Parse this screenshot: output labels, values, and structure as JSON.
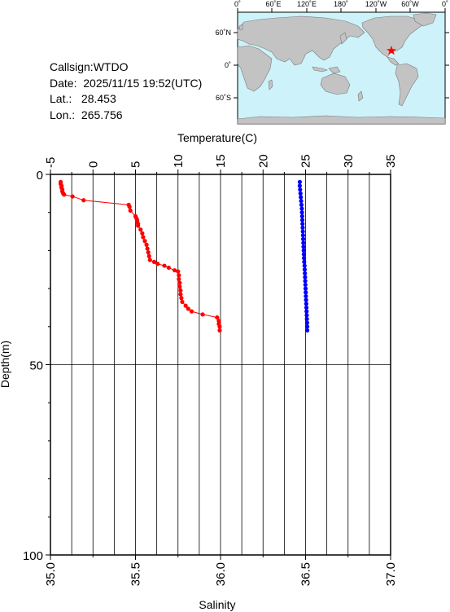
{
  "info": {
    "callsign": "Callsign:WTDO",
    "date_label": "Date:",
    "date_value": "2025/11/15 19:52(UTC)",
    "lat_label": "Lat.:",
    "lat_value": "28.453",
    "lon_label": "Lon.:",
    "lon_value": "265.756"
  },
  "map": {
    "top_labels": [
      "0˚",
      "60˚E",
      "120˚E",
      "180˚",
      "120˚W",
      "60˚W",
      "0˚"
    ],
    "left_labels": [
      "60˚N",
      "0˚",
      "60˚S"
    ],
    "ocean_color": "#cdf2fa",
    "land_color": "#c3c3c3",
    "marker_color": "#ff0000",
    "marker_icon": "star-icon"
  },
  "chart_data": {
    "type": "scatter",
    "title": "",
    "top_axis": {
      "label": "Temperature(C)",
      "ticks": [
        "-5",
        "0",
        "5",
        "10",
        "15",
        "20",
        "25",
        "30",
        "35"
      ],
      "range": [
        -5,
        35
      ]
    },
    "bottom_axis": {
      "label": "Salinity",
      "ticks": [
        "35.0",
        "35.5",
        "36.0",
        "36.5",
        "37.0"
      ],
      "range": [
        35.0,
        37.0
      ]
    },
    "left_axis": {
      "label": "Depth(m)",
      "ticks": [
        "0",
        "50",
        "100"
      ],
      "range": [
        0,
        100
      ],
      "inverted": true
    },
    "grid": true,
    "series": [
      {
        "name": "Temperature",
        "axis": "top",
        "color": "#ff0000",
        "connected": true,
        "points": [
          [
            -3.8,
            2.0
          ],
          [
            -3.8,
            2.5
          ],
          [
            -3.7,
            3.0
          ],
          [
            -3.7,
            3.5
          ],
          [
            -3.6,
            4.0
          ],
          [
            -3.6,
            4.5
          ],
          [
            -3.5,
            5.0
          ],
          [
            -3.4,
            5.3
          ],
          [
            -2.4,
            5.8
          ],
          [
            -1.1,
            6.8
          ],
          [
            4.2,
            8.0
          ],
          [
            4.3,
            8.5
          ],
          [
            4.4,
            9.5
          ],
          [
            5.0,
            11.0
          ],
          [
            5.1,
            11.5
          ],
          [
            5.2,
            12.0
          ],
          [
            5.2,
            12.5
          ],
          [
            5.3,
            13.0
          ],
          [
            5.3,
            13.5
          ],
          [
            5.6,
            14.5
          ],
          [
            5.8,
            15.5
          ],
          [
            5.9,
            16.5
          ],
          [
            6.1,
            17.5
          ],
          [
            6.3,
            18.5
          ],
          [
            6.4,
            19.5
          ],
          [
            6.5,
            20.5
          ],
          [
            6.6,
            21.5
          ],
          [
            6.7,
            22.5
          ],
          [
            7.2,
            23.0
          ],
          [
            7.6,
            23.5
          ],
          [
            8.4,
            24.0
          ],
          [
            8.9,
            24.5
          ],
          [
            9.6,
            25.2
          ],
          [
            10.0,
            25.5
          ],
          [
            10.1,
            26.5
          ],
          [
            10.1,
            27.5
          ],
          [
            10.2,
            28.5
          ],
          [
            10.2,
            29.5
          ],
          [
            10.3,
            30.5
          ],
          [
            10.3,
            31.5
          ],
          [
            10.4,
            32.5
          ],
          [
            10.5,
            33.5
          ],
          [
            10.9,
            34.5
          ],
          [
            11.2,
            35.3
          ],
          [
            11.6,
            36.0
          ],
          [
            12.9,
            36.8
          ],
          [
            14.6,
            37.6
          ],
          [
            14.8,
            38.5
          ],
          [
            14.8,
            39.3
          ],
          [
            14.9,
            40.0
          ],
          [
            14.9,
            41.0
          ]
        ]
      },
      {
        "name": "Salinity",
        "axis": "bottom",
        "color": "#0000ff",
        "connected": true,
        "points": [
          [
            36.466,
            2.0
          ],
          [
            36.466,
            3.0
          ],
          [
            36.468,
            4.0
          ],
          [
            36.47,
            5.0
          ],
          [
            36.472,
            6.0
          ],
          [
            36.474,
            7.0
          ],
          [
            36.476,
            8.0
          ],
          [
            36.478,
            9.0
          ],
          [
            36.479,
            10.0
          ],
          [
            36.48,
            11.0
          ],
          [
            36.481,
            12.0
          ],
          [
            36.482,
            13.0
          ],
          [
            36.483,
            14.0
          ],
          [
            36.484,
            15.0
          ],
          [
            36.485,
            16.0
          ],
          [
            36.486,
            17.0
          ],
          [
            36.487,
            18.0
          ],
          [
            36.488,
            19.0
          ],
          [
            36.489,
            20.0
          ],
          [
            36.49,
            21.0
          ],
          [
            36.491,
            22.0
          ],
          [
            36.492,
            23.0
          ],
          [
            36.494,
            24.0
          ],
          [
            36.495,
            25.0
          ],
          [
            36.496,
            26.0
          ],
          [
            36.497,
            27.0
          ],
          [
            36.498,
            28.0
          ],
          [
            36.499,
            29.0
          ],
          [
            36.5,
            30.0
          ],
          [
            36.501,
            31.0
          ],
          [
            36.502,
            32.0
          ],
          [
            36.503,
            33.0
          ],
          [
            36.504,
            34.0
          ],
          [
            36.505,
            35.0
          ],
          [
            36.506,
            36.0
          ],
          [
            36.507,
            37.0
          ],
          [
            36.508,
            38.0
          ],
          [
            36.509,
            39.0
          ],
          [
            36.51,
            40.0
          ],
          [
            36.51,
            41.0
          ]
        ]
      }
    ]
  }
}
